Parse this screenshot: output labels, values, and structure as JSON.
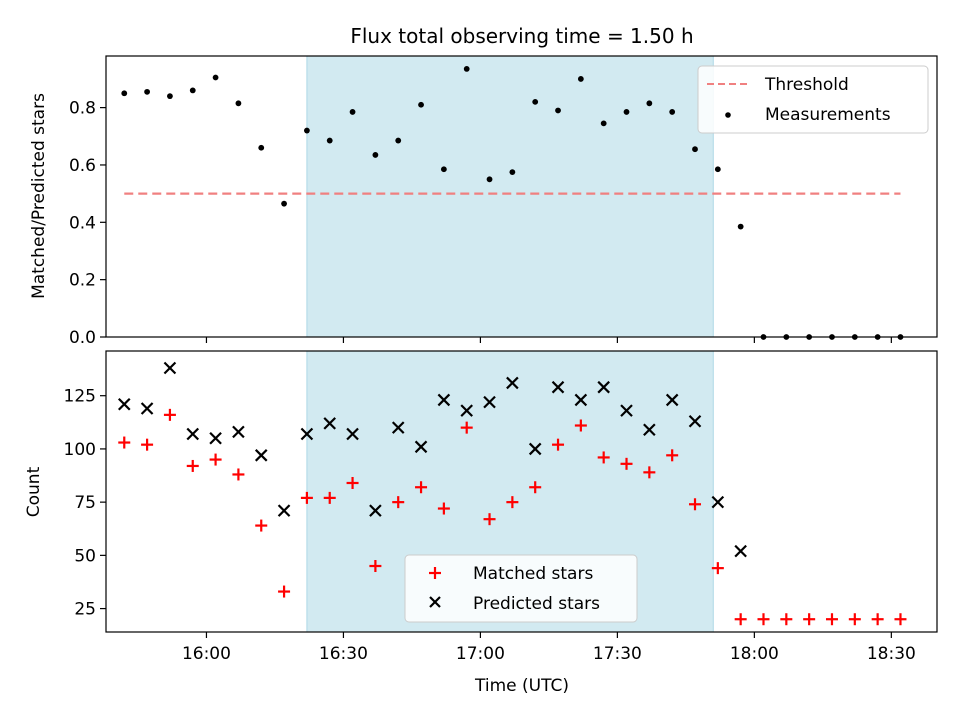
{
  "chart_data": [
    {
      "type": "scatter",
      "title": "Flux total observing time = 1.50 h",
      "xlabel": "",
      "ylabel": "Matched/Predicted stars",
      "ylim": [
        0,
        0.98
      ],
      "xlim": [
        "15:38",
        "18:40"
      ],
      "yticks": [
        "0.0",
        "0.2",
        "0.4",
        "0.6",
        "0.8"
      ],
      "ytick_values": [
        0,
        0.2,
        0.4,
        0.6,
        0.8
      ],
      "xticks_values": [
        "16:00",
        "16:30",
        "17:00",
        "17:30",
        "18:00",
        "18:30"
      ],
      "shaded_span": [
        "16:22",
        "17:51"
      ],
      "shaded_color": "#add8e6",
      "legend_position": "upper right",
      "legend": [
        "Threshold",
        "Measurements"
      ],
      "threshold": {
        "name": "Threshold",
        "value": 0.5,
        "x_range": [
          "15:42",
          "18:32"
        ],
        "color": "#f08080",
        "style": "dashed"
      },
      "series": [
        {
          "name": "Measurements",
          "marker": "dot",
          "color": "#000000",
          "x": [
            "15:42",
            "15:47",
            "15:52",
            "15:57",
            "16:02",
            "16:07",
            "16:12",
            "16:17",
            "16:22",
            "16:27",
            "16:32",
            "16:37",
            "16:42",
            "16:47",
            "16:52",
            "16:57",
            "17:02",
            "17:07",
            "17:12",
            "17:17",
            "17:22",
            "17:27",
            "17:32",
            "17:37",
            "17:42",
            "17:47",
            "17:52",
            "17:57",
            "18:02",
            "18:07",
            "18:12",
            "18:17",
            "18:22",
            "18:27",
            "18:32"
          ],
          "y": [
            0.85,
            0.855,
            0.84,
            0.86,
            0.905,
            0.815,
            0.66,
            0.465,
            0.72,
            0.685,
            0.785,
            0.635,
            0.685,
            0.81,
            0.585,
            0.935,
            0.55,
            0.575,
            0.82,
            0.79,
            0.9,
            0.745,
            0.785,
            0.815,
            0.785,
            0.655,
            0.585,
            0.385,
            0,
            0,
            0,
            0,
            0,
            0,
            0
          ]
        }
      ]
    },
    {
      "type": "scatter",
      "title": "",
      "xlabel": "Time (UTC)",
      "ylabel": "Count",
      "ylim": [
        14,
        146
      ],
      "xlim": [
        "15:38",
        "18:40"
      ],
      "yticks": [
        "25",
        "50",
        "75",
        "100",
        "125"
      ],
      "ytick_values": [
        25,
        50,
        75,
        100,
        125
      ],
      "xticks": [
        "16:00",
        "16:30",
        "17:00",
        "17:30",
        "18:00",
        "18:30"
      ],
      "xticks_values": [
        "16:00",
        "16:30",
        "17:00",
        "17:30",
        "18:00",
        "18:30"
      ],
      "shaded_span": [
        "16:22",
        "17:51"
      ],
      "shaded_color": "#add8e6",
      "legend_position": "lower center",
      "legend": [
        "Matched stars",
        "Predicted stars"
      ],
      "series": [
        {
          "name": "Matched stars",
          "marker": "plus",
          "color": "#ff0000",
          "x": [
            "15:42",
            "15:47",
            "15:52",
            "15:57",
            "16:02",
            "16:07",
            "16:12",
            "16:17",
            "16:22",
            "16:27",
            "16:32",
            "16:37",
            "16:42",
            "16:47",
            "16:52",
            "16:57",
            "17:02",
            "17:07",
            "17:12",
            "17:17",
            "17:22",
            "17:27",
            "17:32",
            "17:37",
            "17:42",
            "17:47",
            "17:52",
            "17:57",
            "18:02",
            "18:07",
            "18:12",
            "18:17",
            "18:22",
            "18:27",
            "18:32"
          ],
          "y": [
            103,
            102,
            116,
            92,
            95,
            88,
            64,
            33,
            77,
            77,
            84,
            45,
            75,
            82,
            72,
            110,
            67,
            75,
            82,
            102,
            111,
            96,
            93,
            89,
            97,
            74,
            44,
            20,
            20,
            20,
            20,
            20,
            20,
            20,
            20
          ]
        },
        {
          "name": "Predicted stars",
          "marker": "x",
          "color": "#000000",
          "x": [
            "15:42",
            "15:47",
            "15:52",
            "15:57",
            "16:02",
            "16:07",
            "16:12",
            "16:17",
            "16:22",
            "16:27",
            "16:32",
            "16:37",
            "16:42",
            "16:47",
            "16:52",
            "16:57",
            "17:02",
            "17:07",
            "17:12",
            "17:17",
            "17:22",
            "17:27",
            "17:32",
            "17:37",
            "17:42",
            "17:47",
            "17:52",
            "17:57"
          ],
          "y": [
            121,
            119,
            138,
            107,
            105,
            108,
            97,
            71,
            107,
            112,
            107,
            71,
            110,
            101,
            123,
            118,
            122,
            131,
            100,
            129,
            123,
            129,
            118,
            109,
            123,
            113,
            75,
            52
          ]
        }
      ]
    }
  ]
}
